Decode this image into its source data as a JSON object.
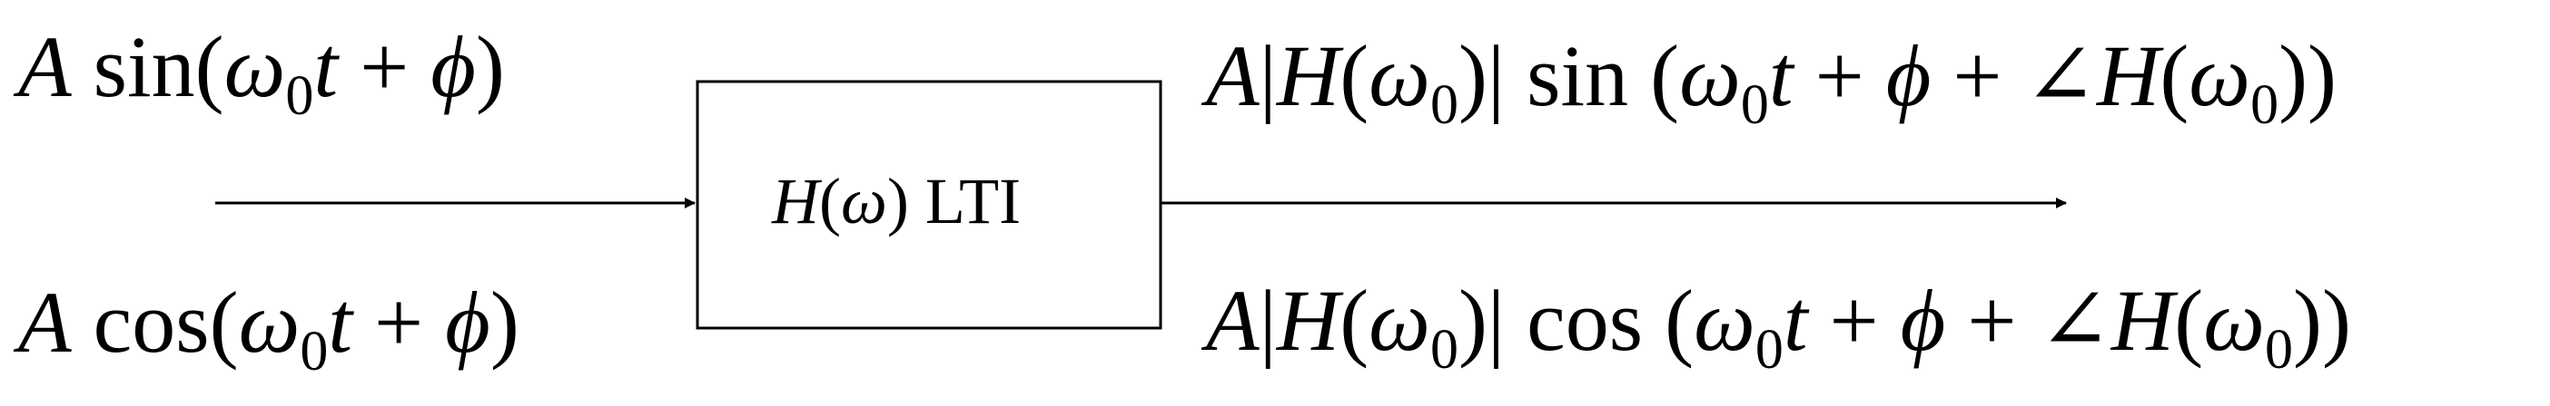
{
  "diagram": {
    "colors": {
      "line": "#000000",
      "background": "#ffffff"
    },
    "input_sin": {
      "amp": "A",
      "fn": "sin",
      "omega": "ω",
      "sub": "0",
      "t": "t",
      "plus": "+",
      "phi": "ϕ"
    },
    "input_cos": {
      "amp": "A",
      "fn": "cos",
      "omega": "ω",
      "sub": "0",
      "t": "t",
      "plus": "+",
      "phi": "ϕ"
    },
    "block": {
      "h": "H",
      "omega": "ω",
      "text": "LTI"
    },
    "output_sin": {
      "amp": "A",
      "h": "H",
      "omega": "ω",
      "sub": "0",
      "fn": "sin",
      "t": "t",
      "plus": "+",
      "phi": "ϕ",
      "angle": "∠"
    },
    "output_cos": {
      "amp": "A",
      "h": "H",
      "omega": "ω",
      "sub": "0",
      "fn": "cos",
      "t": "t",
      "plus": "+",
      "phi": "ϕ",
      "angle": "∠"
    }
  }
}
